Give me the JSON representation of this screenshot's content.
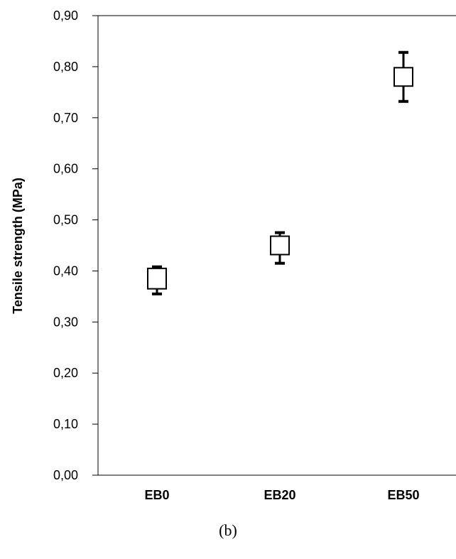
{
  "chart_data": {
    "type": "scatter",
    "categories": [
      "EB0",
      "EB20",
      "EB50"
    ],
    "series": [
      {
        "values": [
          0.385,
          0.45,
          0.78
        ],
        "box_low": [
          0.365,
          0.432,
          0.762
        ],
        "box_high": [
          0.405,
          0.468,
          0.798
        ],
        "err_low": [
          0.355,
          0.415,
          0.732
        ],
        "err_high": [
          0.408,
          0.475,
          0.828
        ]
      }
    ],
    "ylabel": "Tensile strength (MPa)",
    "ylim": [
      0,
      0.9
    ],
    "yticks": [
      "0,00",
      "0,10",
      "0,20",
      "0,30",
      "0,40",
      "0,50",
      "0,60",
      "0,70",
      "0,80",
      "0,90"
    ],
    "grid": false,
    "caption": "(b)"
  }
}
